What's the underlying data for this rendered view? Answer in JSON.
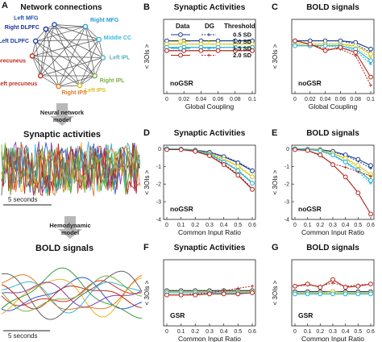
{
  "panel_a": {
    "letter": "A",
    "network_title": "Network connections",
    "nodes": [
      {
        "label": "Left MFG",
        "color": "#2050b0"
      },
      {
        "label": "Right MFG",
        "color": "#2a9ad8"
      },
      {
        "label": "Middle CC",
        "color": "#3ab8e0"
      },
      {
        "label": "Left IPL",
        "color": "#5cb0b8"
      },
      {
        "label": "Right IPL",
        "color": "#7ab040"
      },
      {
        "label": "Left IPS",
        "color": "#d8c020"
      },
      {
        "label": "Right IPS",
        "color": "#e07a20"
      },
      {
        "label": "Left precuneus",
        "color": "#c03020"
      },
      {
        "label": "Right precuneus",
        "color": "#c02818"
      },
      {
        "label": "Left DLPFC",
        "color": "#2040a0"
      },
      {
        "label": "Right DLPFC",
        "color": "#2030a0"
      }
    ],
    "arrow1_label_line1": "Neural network",
    "arrow1_label_line2": "model",
    "synaptic_title": "Synaptic activities",
    "scale1": "5 seconds",
    "arrow2_label_line1": "Hemodynamic",
    "arrow2_label_line2": "model",
    "bold_title": "BOLD signals",
    "scale2": "5 seconds",
    "trace_colors": [
      "#e0302a",
      "#2a5ad8",
      "#f0b020",
      "#30a040",
      "#8a3ab0",
      "#38b8d8",
      "#e07a20",
      "#606060",
      "#c02818",
      "#7ab040"
    ]
  },
  "colors": {
    "s05": "#1a3a8a",
    "s10": "#d8c81a",
    "s15": "#1ab0d8",
    "s20": "#b02418",
    "grid": "#dddddd"
  },
  "legend": {
    "col_data": "Data",
    "col_dg": "DG",
    "col_threshold": "Threshold",
    "thresholds": [
      "0.5 SD",
      "1.0 SD",
      "1.5 SD",
      "2.0 SD"
    ]
  },
  "chart_data": [
    {
      "panel": "B",
      "type": "line",
      "title": "Synaptic Activities",
      "xlabel": "Global Coupling",
      "ylabel": "< 3OIs >",
      "annotation": "noGSR",
      "x": [
        0,
        0.02,
        0.04,
        0.06,
        0.08,
        0.1
      ],
      "xticklabels": [
        "0",
        "0.02",
        "0.04",
        "0.06",
        "0.08",
        "0.1"
      ],
      "ylim": [
        -0.3,
        0.15
      ],
      "series": [
        {
          "name": "0.5 SD",
          "data": [
            0.02,
            0.02,
            0.02,
            0.02,
            0.02,
            0.02
          ],
          "dg": [
            0.02,
            0.02,
            0.02,
            0.02,
            0.02,
            0.02
          ]
        },
        {
          "name": "1.0 SD",
          "data": [
            0.0,
            0.0,
            0.0,
            0.0,
            0.0,
            0.0
          ],
          "dg": [
            0.0,
            0.0,
            0.0,
            0.0,
            0.0,
            0.0
          ]
        },
        {
          "name": "1.5 SD",
          "data": [
            -0.02,
            -0.02,
            -0.02,
            -0.02,
            -0.02,
            -0.02
          ],
          "dg": [
            -0.02,
            -0.02,
            -0.02,
            -0.02,
            -0.02,
            -0.02
          ]
        },
        {
          "name": "2.0 SD",
          "data": [
            -0.04,
            -0.04,
            -0.04,
            -0.04,
            -0.04,
            -0.04
          ],
          "dg": [
            -0.04,
            -0.04,
            -0.04,
            -0.04,
            -0.04,
            -0.04
          ]
        }
      ]
    },
    {
      "panel": "C",
      "type": "line",
      "title": "BOLD signals",
      "xlabel": "Global Coupling",
      "ylabel": "",
      "annotation": "noGSR",
      "x": [
        0,
        0.02,
        0.04,
        0.06,
        0.08,
        0.1
      ],
      "xticklabels": [
        "0",
        "0.02",
        "0.04",
        "0.06",
        "0.08",
        "0.1"
      ],
      "ylim": [
        -0.3,
        0.15
      ],
      "series": [
        {
          "name": "0.5 SD",
          "data": [
            0.02,
            0.02,
            0.02,
            0.02,
            0.01,
            -0.03
          ],
          "dg": [
            0.02,
            0.02,
            0.02,
            0.02,
            0.0,
            -0.05
          ]
        },
        {
          "name": "1.0 SD",
          "data": [
            0.0,
            0.0,
            0.0,
            0.0,
            -0.01,
            -0.06
          ],
          "dg": [
            0.0,
            0.0,
            0.0,
            0.0,
            -0.02,
            -0.08
          ]
        },
        {
          "name": "1.5 SD",
          "data": [
            -0.01,
            -0.01,
            -0.01,
            -0.01,
            -0.03,
            -0.1
          ],
          "dg": [
            -0.01,
            -0.01,
            -0.01,
            -0.02,
            -0.04,
            -0.12
          ]
        },
        {
          "name": "2.0 SD",
          "data": [
            0.02,
            0.0,
            -0.04,
            -0.02,
            -0.05,
            -0.2
          ],
          "dg": [
            0.02,
            0.0,
            -0.03,
            -0.03,
            -0.07,
            -0.25
          ]
        }
      ]
    },
    {
      "panel": "D",
      "type": "line",
      "title": "Synaptic Activities",
      "xlabel": "Common Input Ratio",
      "ylabel": "< 3OIs >",
      "annotation": "noGSR",
      "x": [
        0,
        0.1,
        0.2,
        0.3,
        0.4,
        0.5,
        0.6
      ],
      "xticklabels": [
        "0",
        "0.1",
        "0.2",
        "0.3",
        "0.4",
        "0.5",
        "0.6"
      ],
      "ylim": [
        -4,
        0.2
      ],
      "yticks": [
        0,
        -1,
        -2,
        -3,
        -4
      ],
      "series": [
        {
          "name": "0.5 SD",
          "data": [
            0,
            -0.02,
            -0.08,
            -0.2,
            -0.45,
            -0.8,
            -1.25
          ],
          "dg": [
            0,
            -0.02,
            -0.07,
            -0.18,
            -0.42,
            -0.75,
            -1.2
          ]
        },
        {
          "name": "1.0 SD",
          "data": [
            0,
            -0.03,
            -0.1,
            -0.27,
            -0.6,
            -1.0,
            -1.6
          ],
          "dg": [
            0,
            -0.03,
            -0.09,
            -0.25,
            -0.55,
            -0.95,
            -1.55
          ]
        },
        {
          "name": "1.5 SD",
          "data": [
            0,
            -0.03,
            -0.12,
            -0.32,
            -0.75,
            -1.25,
            -1.95
          ],
          "dg": [
            0,
            -0.03,
            -0.11,
            -0.3,
            -0.7,
            -1.2,
            -1.9
          ]
        },
        {
          "name": "2.0 SD",
          "data": [
            -0.05,
            -0.05,
            -0.15,
            -0.4,
            -0.9,
            -1.5,
            -2.3
          ],
          "dg": [
            -0.05,
            -0.05,
            -0.14,
            -0.38,
            -0.85,
            -1.45,
            -2.25
          ]
        }
      ]
    },
    {
      "panel": "E",
      "type": "line",
      "title": "BOLD signals",
      "xlabel": "Common Input Ratio",
      "ylabel": "",
      "annotation": "noGSR",
      "x": [
        0,
        0.1,
        0.2,
        0.3,
        0.4,
        0.5,
        0.6
      ],
      "xticklabels": [
        "0",
        "0.1",
        "0.2",
        "0.3",
        "0.4",
        "0.5",
        "0.6"
      ],
      "ylim": [
        -4,
        0.2
      ],
      "yticks": [
        0,
        -1,
        -2,
        -3,
        -4
      ],
      "series": [
        {
          "name": "0.5 SD",
          "data": [
            0,
            -0.02,
            -0.05,
            -0.15,
            -0.35,
            -0.6,
            -0.95
          ],
          "dg": [
            0,
            -0.02,
            -0.06,
            -0.17,
            -0.4,
            -0.7,
            -1.1
          ]
        },
        {
          "name": "1.0 SD",
          "data": [
            0,
            -0.03,
            -0.08,
            -0.25,
            -0.55,
            -0.95,
            -1.45
          ],
          "dg": [
            0,
            -0.03,
            -0.09,
            -0.28,
            -0.6,
            -1.05,
            -1.6
          ]
        },
        {
          "name": "1.5 SD",
          "data": [
            0,
            -0.04,
            -0.12,
            -0.35,
            -0.75,
            -1.2,
            -1.8
          ],
          "dg": [
            0,
            -0.04,
            -0.13,
            -0.38,
            -0.8,
            -1.3,
            -1.95
          ]
        },
        {
          "name": "2.0 SD",
          "data": [
            -0.05,
            -0.1,
            -0.35,
            -0.9,
            -1.6,
            -2.5,
            -3.7
          ],
          "dg": [
            -0.05,
            -0.1,
            -0.4,
            -0.85,
            -1.05,
            -1.3,
            -1.55
          ]
        }
      ]
    },
    {
      "panel": "F",
      "type": "line",
      "title": "Synaptic Activities",
      "xlabel": "Common Input Ratio",
      "ylabel": "< 3OIs >",
      "annotation": "GSR",
      "x": [
        0,
        0.1,
        0.2,
        0.3,
        0.4,
        0.5,
        0.6
      ],
      "xticklabels": [
        "0",
        "0.1",
        "0.2",
        "0.3",
        "0.4",
        "0.5",
        "0.6"
      ],
      "ylim": [
        -0.3,
        0.3
      ],
      "series": [
        {
          "name": "0.5 SD",
          "data": [
            0.02,
            0.02,
            0.02,
            0.02,
            0.02,
            0.02,
            0.02
          ],
          "dg": [
            0.02,
            0.02,
            0.02,
            0.02,
            0.02,
            0.02,
            0.02
          ]
        },
        {
          "name": "1.0 SD",
          "data": [
            0.01,
            0.01,
            0.01,
            0.01,
            0.01,
            0.01,
            0.01
          ],
          "dg": [
            0.01,
            0.01,
            0.01,
            0.01,
            0.01,
            0.01,
            0.01
          ]
        },
        {
          "name": "1.5 SD",
          "data": [
            0.0,
            0.0,
            0.0,
            0.0,
            0.0,
            0.0,
            0.0
          ],
          "dg": [
            0.0,
            0.0,
            0.0,
            0.0,
            0.0,
            0.0,
            0.0
          ]
        },
        {
          "name": "2.0 SD",
          "data": [
            -0.02,
            -0.02,
            -0.02,
            -0.01,
            -0.01,
            -0.01,
            0.0
          ],
          "dg": [
            -0.02,
            -0.02,
            -0.01,
            0.0,
            0.02,
            0.04,
            0.06
          ]
        }
      ]
    },
    {
      "panel": "G",
      "type": "line",
      "title": "BOLD signals",
      "xlabel": "Common Input Ratio",
      "ylabel": "",
      "annotation": "GSR",
      "x": [
        0,
        0.1,
        0.2,
        0.3,
        0.4,
        0.5,
        0.6
      ],
      "xticklabels": [
        "0",
        "0.1",
        "0.2",
        "0.3",
        "0.4",
        "0.5",
        "0.6"
      ],
      "ylim": [
        -0.3,
        0.3
      ],
      "series": [
        {
          "name": "0.5 SD",
          "data": [
            0.01,
            0.01,
            0.01,
            0.01,
            0.01,
            0.01,
            0.01
          ],
          "dg": [
            0.01,
            0.01,
            0.01,
            0.01,
            0.01,
            0.01,
            0.01
          ]
        },
        {
          "name": "1.0 SD",
          "data": [
            0.0,
            0.0,
            0.0,
            0.01,
            0.0,
            0.0,
            0.0
          ],
          "dg": [
            0.0,
            0.0,
            0.0,
            0.0,
            0.0,
            0.0,
            0.0
          ]
        },
        {
          "name": "1.5 SD",
          "data": [
            -0.01,
            -0.01,
            -0.01,
            -0.01,
            -0.01,
            -0.01,
            -0.01
          ],
          "dg": [
            -0.01,
            -0.01,
            -0.01,
            -0.01,
            -0.01,
            -0.01,
            -0.01
          ]
        },
        {
          "name": "2.0 SD",
          "data": [
            0.06,
            0.08,
            0.05,
            0.12,
            0.05,
            0.06,
            0.08
          ],
          "dg": [
            0.06,
            0.07,
            0.06,
            0.09,
            0.06,
            0.07,
            0.08
          ]
        }
      ]
    }
  ]
}
